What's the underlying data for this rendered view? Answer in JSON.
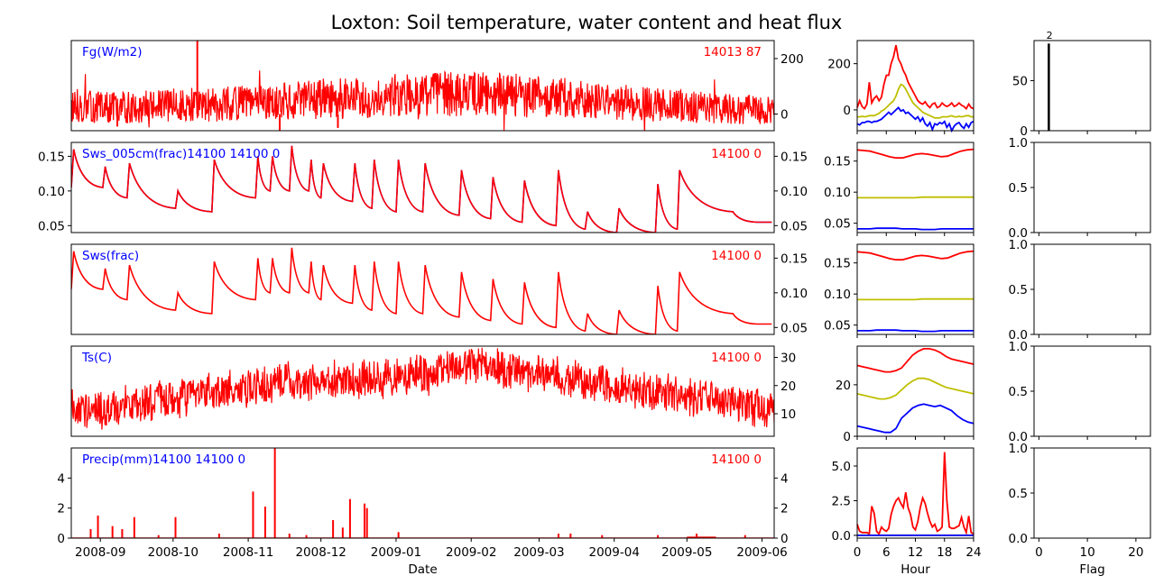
{
  "title": "Loxton: Soil temperature, water content and heat flux",
  "colors": {
    "series": "#ff0000",
    "label": "#0000ff",
    "mean": "#bfbf00",
    "min": "#0000ff",
    "max": "#ff0000",
    "flag": "#000000"
  },
  "chart_data": [
    {
      "id": "fg_ts",
      "type": "line",
      "panel": "time-series",
      "left_label": "Fg(W/m2)",
      "right_label": "14013 87",
      "ylim": [
        -60,
        265
      ],
      "yticks": [
        "200",
        "0"
      ],
      "ytick_values": [
        200,
        0
      ],
      "ytick_side": "right",
      "style": "noisy",
      "series": [
        {
          "color": "#ff0000",
          "x": [
            "2008-08-20",
            "2008-09-15",
            "2008-10-15",
            "2008-11-15",
            "2008-12-15",
            "2009-01-15",
            "2009-02-15",
            "2009-03-15",
            "2009-04-15",
            "2009-05-15",
            "2009-06-05"
          ],
          "y": [
            25,
            25,
            35,
            45,
            60,
            75,
            70,
            55,
            35,
            20,
            15
          ]
        }
      ]
    },
    {
      "id": "sws005_ts",
      "type": "line",
      "panel": "time-series",
      "left_label": "Sws_005cm(frac)14100 14100 0",
      "right_label": "14100 0",
      "ylim": [
        0.04,
        0.17
      ],
      "yticks": [
        "0.15",
        "0.10",
        "0.05"
      ],
      "ytick_values": [
        0.15,
        0.1,
        0.05
      ],
      "ytick_side": "both",
      "style": "recession",
      "series": [
        {
          "color": "#ff0000",
          "x": [
            "2008-08-20",
            "2008-08-21",
            "2008-09-02",
            "2008-09-03",
            "2008-09-12",
            "2008-09-13",
            "2008-10-02",
            "2008-10-03",
            "2008-10-17",
            "2008-10-18",
            "2008-11-04",
            "2008-11-05",
            "2008-11-10",
            "2008-11-11",
            "2008-11-18",
            "2008-11-19",
            "2008-11-26",
            "2008-11-27",
            "2008-12-01",
            "2008-12-02",
            "2008-12-14",
            "2008-12-15",
            "2008-12-22",
            "2008-12-23",
            "2009-01-01",
            "2009-01-02",
            "2009-01-12",
            "2009-01-13",
            "2009-01-27",
            "2009-01-28",
            "2009-02-09",
            "2009-02-10",
            "2009-02-22",
            "2009-02-23",
            "2009-03-08",
            "2009-03-09",
            "2009-03-20",
            "2009-03-21",
            "2009-04-02",
            "2009-04-03",
            "2009-04-18",
            "2009-04-19",
            "2009-04-27",
            "2009-04-28",
            "2009-05-20",
            "2009-05-30",
            "2009-06-05"
          ],
          "y": [
            0.105,
            0.16,
            0.105,
            0.135,
            0.09,
            0.14,
            0.075,
            0.1,
            0.07,
            0.145,
            0.09,
            0.15,
            0.1,
            0.15,
            0.1,
            0.165,
            0.1,
            0.145,
            0.09,
            0.14,
            0.085,
            0.14,
            0.075,
            0.145,
            0.07,
            0.145,
            0.07,
            0.14,
            0.065,
            0.13,
            0.06,
            0.12,
            0.055,
            0.115,
            0.05,
            0.13,
            0.045,
            0.07,
            0.04,
            0.075,
            0.04,
            0.11,
            0.045,
            0.13,
            0.07,
            0.055,
            0.055
          ]
        }
      ]
    },
    {
      "id": "sws_ts",
      "type": "line",
      "panel": "time-series",
      "left_label": "Sws(frac)",
      "right_label": "14100 0",
      "ylim": [
        0.04,
        0.17
      ],
      "yticks": [
        "0.15",
        "0.10",
        "0.05"
      ],
      "ytick_values": [
        0.15,
        0.1,
        0.05
      ],
      "ytick_side": "right",
      "style": "recession",
      "same_as": "sws005_ts"
    },
    {
      "id": "ts_ts",
      "type": "line",
      "panel": "time-series",
      "left_label": "Ts(C)",
      "right_label": "14100 0",
      "ylim": [
        2,
        34
      ],
      "yticks": [
        "30",
        "20",
        "10"
      ],
      "ytick_values": [
        30,
        20,
        10
      ],
      "ytick_side": "right",
      "style": "noisy_band",
      "series": [
        {
          "color": "#ff0000",
          "x": [
            "2008-08-20",
            "2008-09-15",
            "2008-10-15",
            "2008-11-15",
            "2008-12-15",
            "2009-01-15",
            "2009-02-01",
            "2009-02-15",
            "2009-03-15",
            "2009-04-15",
            "2009-05-15",
            "2009-06-05"
          ],
          "y": [
            11,
            13,
            17,
            21,
            22,
            24,
            28,
            26,
            22,
            18,
            14,
            12
          ]
        }
      ]
    },
    {
      "id": "precip_ts",
      "type": "bar",
      "panel": "time-series",
      "left_label": "Precip(mm)14100 14100 0",
      "right_label": "14100 0",
      "ylim": [
        0,
        6
      ],
      "yticks": [
        "4",
        "2",
        "0"
      ],
      "ytick_values": [
        4,
        2,
        0
      ],
      "ytick_side": "both",
      "xlabel": "Date",
      "xticks": [
        "2008-09",
        "2008-10",
        "2008-11",
        "2008-12",
        "2009-01",
        "2009-02",
        "2009-03",
        "2009-04",
        "2009-05",
        "2009-06"
      ],
      "xlim": [
        "2008-08-20",
        "2009-06-06"
      ],
      "events": [
        [
          "2008-08-28",
          0.6
        ],
        [
          "2008-08-31",
          1.5
        ],
        [
          "2008-09-06",
          0.8
        ],
        [
          "2008-09-10",
          0.6
        ],
        [
          "2008-09-15",
          1.4
        ],
        [
          "2008-09-25",
          0.2
        ],
        [
          "2008-10-02",
          1.4
        ],
        [
          "2008-10-20",
          0.3
        ],
        [
          "2008-11-03",
          3.1
        ],
        [
          "2008-11-08",
          2.1
        ],
        [
          "2008-11-12",
          6.0
        ],
        [
          "2008-11-18",
          0.3
        ],
        [
          "2008-11-25",
          0.2
        ],
        [
          "2008-12-06",
          1.2
        ],
        [
          "2008-12-10",
          0.7
        ],
        [
          "2008-12-13",
          2.6
        ],
        [
          "2008-12-19",
          2.3
        ],
        [
          "2008-12-20",
          2.0
        ],
        [
          "2009-01-02",
          0.4
        ],
        [
          "2009-03-09",
          0.3
        ],
        [
          "2009-03-14",
          0.3
        ],
        [
          "2009-03-27",
          0.2
        ],
        [
          "2009-04-19",
          0.2
        ],
        [
          "2009-05-05",
          0.3
        ],
        [
          "2009-05-25",
          0.2
        ]
      ]
    },
    {
      "id": "fg_diurnal",
      "type": "line",
      "panel": "diurnal",
      "ylim": [
        -90,
        300
      ],
      "yticks": [
        "200",
        "0"
      ],
      "ytick_values": [
        200,
        0
      ],
      "series": [
        {
          "name": "max",
          "color": "#ff0000",
          "y": [
            10,
            40,
            15,
            5,
            25,
            120,
            30,
            50,
            60,
            40,
            55,
            110,
            150,
            150,
            200,
            230,
            280,
            220,
            200,
            170,
            150,
            120,
            100,
            80,
            60,
            40,
            30,
            25,
            35,
            20,
            10,
            25,
            30,
            10,
            15,
            30,
            20,
            15,
            20,
            30,
            15,
            20,
            30,
            20,
            15,
            5,
            25,
            10,
            5
          ]
        },
        {
          "name": "mean",
          "color": "#bfbf00",
          "y": [
            -30,
            -30,
            -28,
            -30,
            -28,
            -25,
            -25,
            -25,
            -20,
            -15,
            -5,
            0,
            10,
            20,
            30,
            40,
            60,
            90,
            110,
            105,
            90,
            70,
            50,
            30,
            20,
            10,
            0,
            -10,
            -15,
            -20,
            -25,
            -30,
            -35,
            -35,
            -35,
            -30,
            -30,
            -30,
            -28,
            -25,
            -30,
            -30,
            -28,
            -30,
            -28,
            -25,
            -25,
            -30,
            -30
          ]
        },
        {
          "name": "min",
          "color": "#0000ff",
          "y": [
            -60,
            -65,
            -55,
            -55,
            -50,
            -50,
            -55,
            -50,
            -50,
            -45,
            -40,
            -30,
            -20,
            -10,
            -20,
            -10,
            0,
            10,
            -5,
            0,
            -15,
            -10,
            -20,
            -30,
            -40,
            -30,
            -50,
            -35,
            -60,
            -70,
            -55,
            -85,
            -60,
            -65,
            -55,
            -60,
            -50,
            -75,
            -60,
            -90,
            -70,
            -60,
            -55,
            -70,
            -80,
            -60,
            -75,
            -55,
            -50
          ]
        }
      ]
    },
    {
      "id": "sws005_diurnal",
      "type": "line",
      "panel": "diurnal",
      "ylim": [
        0.035,
        0.18
      ],
      "yticks": [
        "0.15",
        "0.10",
        "0.05"
      ],
      "ytick_values": [
        0.15,
        0.1,
        0.05
      ],
      "series": [
        {
          "name": "max",
          "color": "#ff0000",
          "y": [
            0.168,
            0.167,
            0.166,
            0.163,
            0.16,
            0.157,
            0.155,
            0.155,
            0.158,
            0.161,
            0.162,
            0.161,
            0.159,
            0.157,
            0.158,
            0.162,
            0.166,
            0.168,
            0.169
          ]
        },
        {
          "name": "mean",
          "color": "#bfbf00",
          "y": [
            0.091,
            0.091,
            0.091,
            0.091,
            0.091,
            0.091,
            0.091,
            0.091,
            0.091,
            0.091,
            0.092,
            0.092,
            0.092,
            0.092,
            0.092,
            0.092,
            0.092,
            0.092,
            0.092
          ]
        },
        {
          "name": "min",
          "color": "#0000ff",
          "y": [
            0.041,
            0.041,
            0.041,
            0.042,
            0.042,
            0.042,
            0.042,
            0.041,
            0.041,
            0.041,
            0.04,
            0.04,
            0.04,
            0.041,
            0.041,
            0.041,
            0.041,
            0.041,
            0.041
          ]
        }
      ]
    },
    {
      "id": "sws_diurnal",
      "type": "line",
      "panel": "diurnal",
      "ylim": [
        0.035,
        0.18
      ],
      "yticks": [
        "0.15",
        "0.10",
        "0.05"
      ],
      "ytick_values": [
        0.15,
        0.1,
        0.05
      ],
      "same_as": "sws005_diurnal"
    },
    {
      "id": "ts_diurnal",
      "type": "line",
      "panel": "diurnal",
      "ylim": [
        0,
        35
      ],
      "yticks": [
        "20",
        "0"
      ],
      "ytick_values": [
        20,
        0
      ],
      "series": [
        {
          "name": "max",
          "color": "#ff0000",
          "y": [
            27.5,
            27,
            26.5,
            26,
            25.5,
            25,
            25,
            25.5,
            26.5,
            29,
            31.5,
            33,
            34,
            34,
            33.5,
            32.5,
            31,
            30,
            29.5,
            29,
            28.5,
            28
          ]
        },
        {
          "name": "mean",
          "color": "#bfbf00",
          "y": [
            16.5,
            16,
            15.5,
            15,
            14.5,
            14.5,
            15,
            16,
            18,
            20,
            21.5,
            22.5,
            22.5,
            22,
            21,
            20,
            19,
            18.5,
            18,
            17.5,
            17,
            16.5
          ]
        },
        {
          "name": "min",
          "color": "#0000ff",
          "y": [
            4,
            3.5,
            3,
            2.5,
            2,
            1.5,
            1.5,
            3,
            7,
            9,
            11,
            12,
            12.5,
            12,
            11.5,
            12,
            11,
            10,
            8,
            6.5,
            5.5,
            5
          ]
        }
      ]
    },
    {
      "id": "precip_diurnal",
      "type": "line",
      "panel": "diurnal",
      "ylim": [
        -0.2,
        6.3
      ],
      "yticks": [
        "5.0",
        "2.5",
        "0.0"
      ],
      "ytick_values": [
        5.0,
        2.5,
        0.0
      ],
      "xlabel": "Hour",
      "xticks": [
        "0",
        "6",
        "12",
        "18",
        "24"
      ],
      "xlim": [
        0,
        24
      ],
      "series": [
        {
          "name": "max",
          "color": "#ff0000",
          "y": [
            0.8,
            0.3,
            0.2,
            0.2,
            0.2,
            0.1,
            2.1,
            1.6,
            0.3,
            0.1,
            0.6,
            0.4,
            0.3,
            0.5,
            1.5,
            2.1,
            2.5,
            2.7,
            2.3,
            2.0,
            3.1,
            2.0,
            1.5,
            0.6,
            0.4,
            1.0,
            2.0,
            2.7,
            2.3,
            1.6,
            1.0,
            0.6,
            0.8,
            0.3,
            0.4,
            0.6,
            6.0,
            2.5,
            0.6,
            0.5,
            0.5,
            0.6,
            0.7,
            1.3,
            0.6,
            0.2,
            1.4,
            0.2,
            0.1
          ]
        },
        {
          "name": "mean",
          "color": "#bfbf00",
          "y": [
            0.01,
            0.01,
            0.01,
            0.01,
            0.01,
            0.01,
            0.01
          ]
        },
        {
          "name": "min",
          "color": "#0000ff",
          "y": [
            0,
            0,
            0,
            0,
            0,
            0,
            0
          ]
        }
      ]
    },
    {
      "id": "fg_flag",
      "type": "bar",
      "panel": "flag",
      "ylim": [
        0,
        90
      ],
      "yticks": [
        "50",
        "0"
      ],
      "ytick_values": [
        50,
        0
      ],
      "bars": [
        {
          "flag": 2,
          "count": 87,
          "label": "2"
        }
      ]
    },
    {
      "id": "sws005_flag",
      "type": "bar",
      "panel": "flag",
      "ylim": [
        0,
        1
      ],
      "yticks": [
        "1.0",
        "0.5",
        "0.0"
      ],
      "ytick_values": [
        1.0,
        0.5,
        0.0
      ],
      "bars": []
    },
    {
      "id": "sws_flag",
      "type": "bar",
      "panel": "flag",
      "ylim": [
        0,
        1
      ],
      "yticks": [
        "1.0",
        "0.5",
        "0.0"
      ],
      "ytick_values": [
        1.0,
        0.5,
        0.0
      ],
      "bars": []
    },
    {
      "id": "ts_flag",
      "type": "bar",
      "panel": "flag",
      "ylim": [
        0,
        1
      ],
      "yticks": [
        "1.0",
        "0.5",
        "0.0"
      ],
      "ytick_values": [
        1.0,
        0.5,
        0.0
      ],
      "bars": []
    },
    {
      "id": "precip_flag",
      "type": "bar",
      "panel": "flag",
      "ylim": [
        0,
        1
      ],
      "yticks": [
        "1.0",
        "0.5",
        "0.0"
      ],
      "ytick_values": [
        1.0,
        0.5,
        0.0
      ],
      "xlabel": "Flag",
      "xticks": [
        "0",
        "10",
        "20"
      ],
      "xlim": [
        -1,
        23
      ],
      "bars": []
    }
  ]
}
